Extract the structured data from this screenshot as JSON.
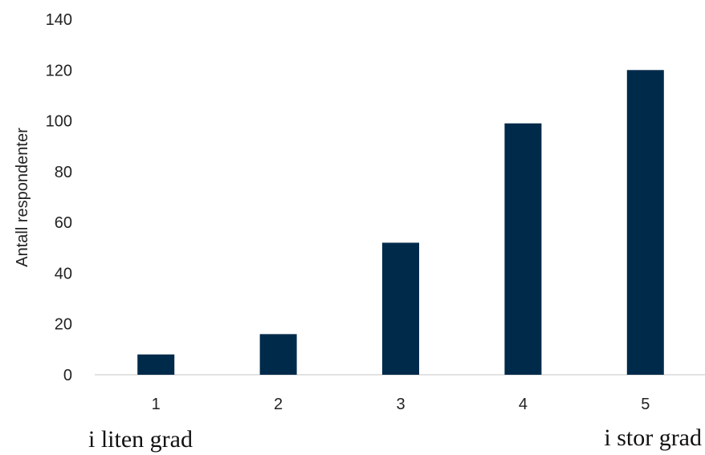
{
  "chart_data": {
    "type": "bar",
    "title": "",
    "xlabel": "",
    "ylabel": "Antall respondenter",
    "categories": [
      "1",
      "2",
      "3",
      "4",
      "5"
    ],
    "values": [
      8,
      16,
      52,
      99,
      120
    ],
    "ylim": [
      0,
      140
    ],
    "yticks": [
      0,
      20,
      40,
      60,
      80,
      100,
      120,
      140
    ],
    "grid": false,
    "legend": "none",
    "bar_color": "#002a4a",
    "scale_labels": {
      "low": "i liten grad",
      "high": "i stor grad"
    }
  }
}
